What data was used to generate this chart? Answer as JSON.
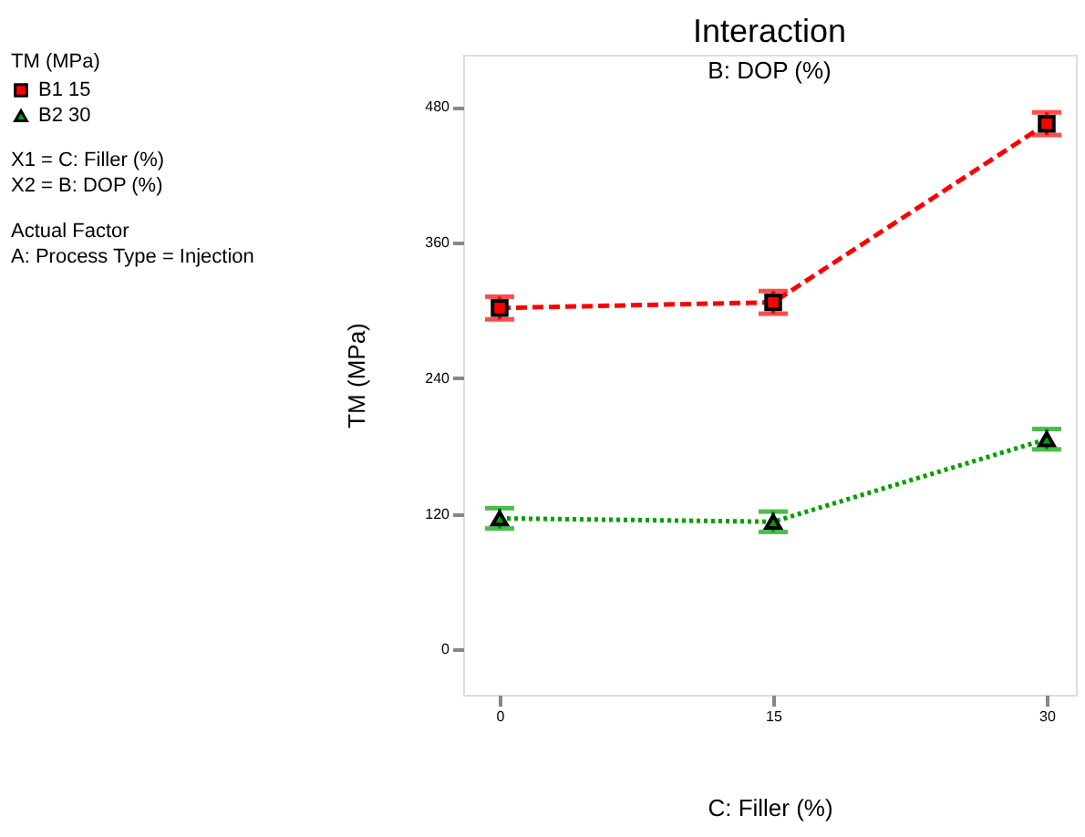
{
  "chart_data": {
    "type": "line",
    "title": "Interaction",
    "subtitle": "B: DOP (%)",
    "xlabel": "C: Filler (%)",
    "ylabel": "TM (MPa)",
    "legend_title": "TM (MPa)",
    "legend": "top left",
    "x": [
      0,
      15,
      30
    ],
    "xlim": [
      -2,
      31.6
    ],
    "xticks": [
      0,
      15,
      30
    ],
    "ylim": [
      -40,
      526
    ],
    "yticks": [
      0,
      120,
      240,
      360,
      480
    ],
    "grid": false,
    "series": [
      {
        "name": "B1 15",
        "color": "#ff0000",
        "values": [
          302,
          307,
          465
        ],
        "errors": [
          10,
          10,
          10
        ],
        "marker": "square",
        "line_style": "dashed"
      },
      {
        "name": "B2 30",
        "color": "#00a000",
        "values": [
          116,
          113,
          186
        ],
        "errors": [
          9,
          9,
          9
        ],
        "marker": "triangle",
        "line_style": "dotted"
      }
    ],
    "annotations": [
      "X1 = C: Filler (%)",
      "X2 = B: DOP (%)",
      "Actual Factor",
      "A: Process Type = Injection"
    ]
  }
}
